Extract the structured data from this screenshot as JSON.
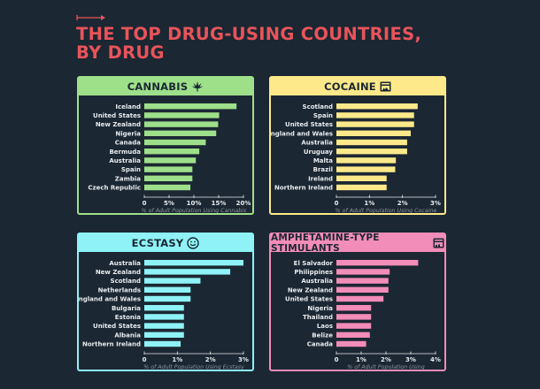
{
  "header": {
    "title_line1": "THE TOP DRUG-USING COUNTRIES,",
    "title_line2": "BY DRUG",
    "accent_color": "#e8545a",
    "background_color": "#1b2733"
  },
  "chart_data": [
    {
      "type": "bar",
      "orientation": "horizontal",
      "title": "CANNABIS",
      "icon": "cannabis-leaf-icon",
      "color": "#9ee08a",
      "categories": [
        "Iceland",
        "United States",
        "New Zealand",
        "Nigeria",
        "Canada",
        "Bermuda",
        "Australia",
        "Spain",
        "Zambia",
        "Czech Republic"
      ],
      "values": [
        18.6,
        15.1,
        14.9,
        14.5,
        12.4,
        11.1,
        10.4,
        9.7,
        9.7,
        9.3
      ],
      "xlabel": "% of Adult Population Using Cannabis",
      "xlabel_lines": [
        "% of Adult Population Using Cannabis"
      ],
      "xlim": [
        0,
        20
      ],
      "ticks": [
        0,
        5,
        10,
        15,
        20
      ],
      "tick_labels": [
        "0",
        "5%",
        "10%",
        "15%",
        "20%"
      ],
      "grid": false
    },
    {
      "type": "bar",
      "orientation": "horizontal",
      "title": "COCAINE",
      "icon": "cocaine-box-icon",
      "color": "#fde98a",
      "categories": [
        "Scotland",
        "Spain",
        "United States",
        "England and Wales",
        "Australia",
        "Uruguay",
        "Malta",
        "Brazil",
        "Ireland",
        "Northern Ireland"
      ],
      "values": [
        2.46,
        2.35,
        2.35,
        2.25,
        2.14,
        2.14,
        1.8,
        1.78,
        1.52,
        1.52
      ],
      "xlabel": "% of Adult Population Using Cocaine",
      "xlabel_lines": [
        "% of Adult Population Using Cocaine"
      ],
      "xlim": [
        0,
        3
      ],
      "ticks": [
        0,
        1,
        2,
        3
      ],
      "tick_labels": [
        "0",
        "1%",
        "2%",
        "3%"
      ],
      "grid": false
    },
    {
      "type": "bar",
      "orientation": "horizontal",
      "title": "ECSTASY",
      "icon": "smiley-face-icon",
      "color": "#8ef2f6",
      "categories": [
        "Australia",
        "New Zealand",
        "Scotland",
        "Netherlands",
        "England and Wales",
        "Bulgaria",
        "Estonia",
        "United States",
        "Albania",
        "Northern Ireland"
      ],
      "values": [
        3.0,
        2.6,
        1.7,
        1.4,
        1.4,
        1.2,
        1.2,
        1.2,
        1.2,
        1.1
      ],
      "xlabel": "% of Adult Population Using Ecstasy",
      "xlabel_lines": [
        "% of Adult Population Using Ecstasy"
      ],
      "xlim": [
        0,
        3
      ],
      "ticks": [
        0,
        1,
        2,
        3
      ],
      "tick_labels": [
        "0",
        "1%",
        "2%",
        "3%"
      ],
      "grid": false
    },
    {
      "type": "bar",
      "orientation": "horizontal",
      "title": "AMPHETAMINE-TYPE STIMULANTS",
      "icon": "pill-box-icon",
      "color": "#f28cb8",
      "categories": [
        "El Salvador",
        "Philippines",
        "Australia",
        "New Zealand",
        "United States",
        "Nigeria",
        "Thailand",
        "Laos",
        "Belize",
        "Canada"
      ],
      "values": [
        3.3,
        2.15,
        2.1,
        2.1,
        1.9,
        1.4,
        1.4,
        1.4,
        1.35,
        1.2
      ],
      "xlabel": "% of Adult Population Using Amphetamine-Type Stimulants",
      "xlabel_lines": [
        "% of Adult Population Using",
        "Amphetamine-Type Stimulants"
      ],
      "xlim": [
        0,
        4
      ],
      "ticks": [
        0,
        1,
        2,
        3,
        4
      ],
      "tick_labels": [
        "0",
        "1%",
        "2%",
        "3%",
        "4%"
      ],
      "grid": false
    }
  ]
}
